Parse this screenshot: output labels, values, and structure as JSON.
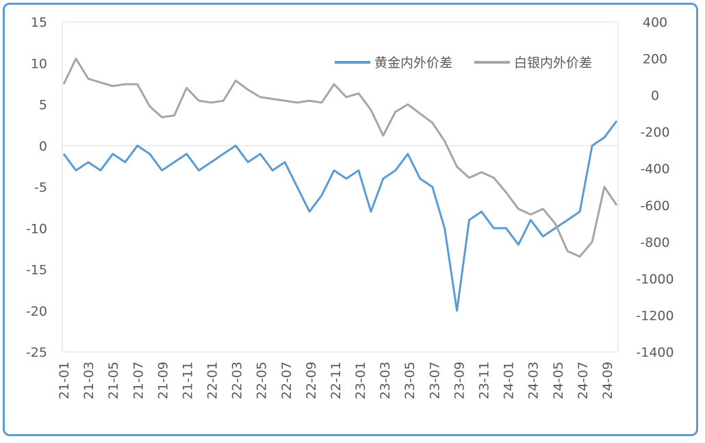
{
  "chart_data": {
    "type": "line",
    "title": "",
    "left_axis": {
      "ylim": [
        -25,
        15
      ],
      "ticks": [
        "15",
        "10",
        "5",
        "0",
        "-5",
        "-10",
        "-15",
        "-20",
        "-25"
      ]
    },
    "right_axis": {
      "ylim": [
        -1400,
        400
      ],
      "ticks": [
        "400",
        "200",
        "0",
        "-200",
        "-400",
        "-600",
        "-800",
        "-1000",
        "-1200",
        "-1400"
      ]
    },
    "x_ticks": [
      "21-01",
      "21-03",
      "21-05",
      "21-07",
      "21-09",
      "21-11",
      "22-01",
      "22-03",
      "22-05",
      "22-07",
      "22-09",
      "22-11",
      "23-01",
      "23-03",
      "23-05",
      "23-07",
      "23-09",
      "23-11",
      "24-01",
      "24-03",
      "24-05",
      "24-07",
      "24-09"
    ],
    "grid": false,
    "zero_line": true,
    "legend_position": "top-right",
    "series": [
      {
        "name": "黄金内外价差",
        "axis": "left",
        "color": "#5b9bd5",
        "x": [
          "21-01",
          "21-02",
          "21-03",
          "21-04",
          "21-05",
          "21-06",
          "21-07",
          "21-08",
          "21-09",
          "21-10",
          "21-11",
          "21-12",
          "22-01",
          "22-02",
          "22-03",
          "22-04",
          "22-05",
          "22-06",
          "22-07",
          "22-08",
          "22-09",
          "22-10",
          "22-11",
          "22-12",
          "23-01",
          "23-02",
          "23-03",
          "23-04",
          "23-05",
          "23-06",
          "23-07",
          "23-08",
          "23-09",
          "23-10",
          "23-11",
          "23-12",
          "24-01",
          "24-02",
          "24-03",
          "24-04",
          "24-05",
          "24-06",
          "24-07",
          "24-08",
          "24-09",
          "24-10"
        ],
        "values": [
          -1,
          -3,
          -2,
          -3,
          -1,
          -2,
          0,
          -1,
          -3,
          -2,
          -1,
          -3,
          -2,
          -1,
          0,
          -2,
          -1,
          -3,
          -2,
          -5,
          -8,
          -6,
          -3,
          -4,
          -3,
          -8,
          -4,
          -3,
          -1,
          -4,
          -5,
          -10,
          -20,
          -9,
          -8,
          -10,
          -10,
          -12,
          -9,
          -11,
          -10,
          -9,
          -8,
          0,
          1,
          3
        ]
      },
      {
        "name": "白银内外价差",
        "axis": "right",
        "color": "#a5a5a5",
        "x": [
          "21-01",
          "21-02",
          "21-03",
          "21-04",
          "21-05",
          "21-06",
          "21-07",
          "21-08",
          "21-09",
          "21-10",
          "21-11",
          "21-12",
          "22-01",
          "22-02",
          "22-03",
          "22-04",
          "22-05",
          "22-06",
          "22-07",
          "22-08",
          "22-09",
          "22-10",
          "22-11",
          "22-12",
          "23-01",
          "23-02",
          "23-03",
          "23-04",
          "23-05",
          "23-06",
          "23-07",
          "23-08",
          "23-09",
          "23-10",
          "23-11",
          "23-12",
          "24-01",
          "24-02",
          "24-03",
          "24-04",
          "24-05",
          "24-06",
          "24-07",
          "24-08",
          "24-09",
          "24-10"
        ],
        "values": [
          60,
          200,
          90,
          70,
          50,
          60,
          60,
          -60,
          -120,
          -110,
          40,
          -30,
          -40,
          -30,
          80,
          30,
          -10,
          -20,
          -30,
          -40,
          -30,
          -40,
          60,
          -10,
          10,
          -80,
          -220,
          -90,
          -50,
          -100,
          -150,
          -250,
          -390,
          -450,
          -420,
          -450,
          -530,
          -620,
          -650,
          -620,
          -700,
          -850,
          -880,
          -800,
          -500,
          -600
        ]
      }
    ]
  }
}
